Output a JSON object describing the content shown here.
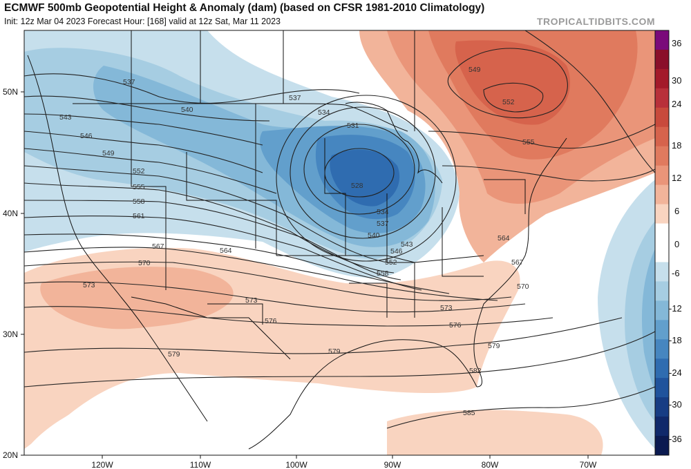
{
  "header": {
    "title": "ECMWF 500mb Geopotential Height & Anomaly (dam) (based on CFSR 1981-2010 Climatology)",
    "init": "Init: 12z Mar 04 2023   Forecast Hour: [168]   valid at 12z Sat, Mar 11 2023",
    "brand": "TROPICALTIDBITS.COM"
  },
  "axes": {
    "lat_labels": [
      "50N",
      "40N",
      "30N",
      "20N"
    ],
    "lon_labels": [
      "120W",
      "110W",
      "100W",
      "90W",
      "80W",
      "70W"
    ]
  },
  "colorbar": {
    "ticks": [
      "36",
      "30",
      "24",
      "18",
      "12",
      "6",
      "0",
      "-6",
      "-12",
      "-18",
      "-24",
      "-30",
      "-36"
    ],
    "colors": [
      "#7a0a7a",
      "#8a0f2a",
      "#a31a2a",
      "#b8303a",
      "#c84a3c",
      "#d6634c",
      "#e07a5e",
      "#ea9579",
      "#f2b49a",
      "#f9d4c0",
      "#ffffff",
      "#ffffff",
      "#c6dfec",
      "#a6cde2",
      "#84b8d8",
      "#629fcc",
      "#4686c0",
      "#2f6cb0",
      "#20539c",
      "#173d84",
      "#10296a",
      "#0b1a50"
    ]
  },
  "contour_labels": [
    "537",
    "540",
    "543",
    "546",
    "549",
    "552",
    "555",
    "558",
    "561",
    "567",
    "570",
    "573",
    "564",
    "573",
    "576",
    "579",
    "579",
    "537",
    "534",
    "531",
    "528",
    "534",
    "537",
    "540",
    "543",
    "546",
    "552",
    "558",
    "573",
    "576",
    "579",
    "582",
    "585",
    "549",
    "552",
    "555",
    "564",
    "567",
    "570"
  ],
  "colors": {
    "neg_light": "#c6dfec",
    "neg_mid": "#84b8d8",
    "neg_dark": "#2f6cb0",
    "pos_light": "#f9d4c0",
    "pos_mid": "#ea9579",
    "pos_dark": "#c84a3c"
  }
}
